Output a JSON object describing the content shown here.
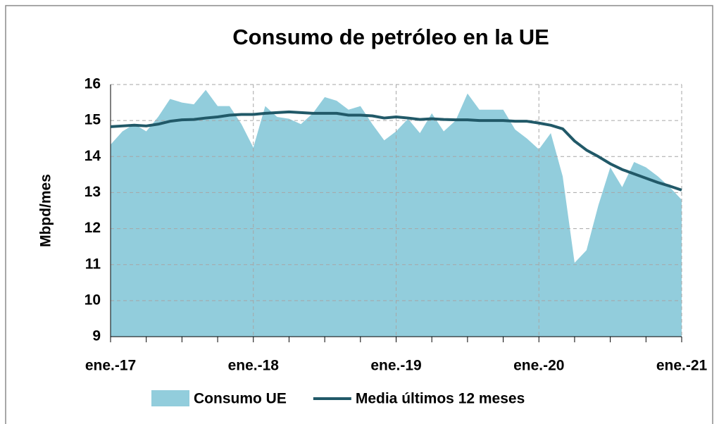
{
  "chart_data": {
    "type": "area_line",
    "title": "Consumo de petróleo en la UE",
    "y_label": "Mbpd/mes",
    "categories": [
      "ene.-17",
      null,
      null,
      null,
      null,
      null,
      null,
      null,
      null,
      null,
      null,
      null,
      "ene.-18",
      null,
      null,
      null,
      null,
      null,
      null,
      null,
      null,
      null,
      null,
      null,
      "ene.-19",
      null,
      null,
      null,
      null,
      null,
      null,
      null,
      null,
      null,
      null,
      null,
      "ene.-20",
      null,
      null,
      null,
      null,
      null,
      null,
      null,
      null,
      null,
      null,
      null,
      "ene.-21"
    ],
    "series": [
      {
        "name": "Consumo UE",
        "kind": "area",
        "color": "#92cddc",
        "values": [
          14.33,
          14.7,
          14.9,
          14.7,
          15.1,
          15.6,
          15.5,
          15.45,
          15.85,
          15.4,
          15.4,
          14.9,
          14.25,
          15.4,
          15.1,
          15.05,
          14.9,
          15.2,
          15.65,
          15.55,
          15.3,
          15.4,
          14.9,
          14.45,
          14.7,
          15.05,
          14.65,
          15.2,
          14.7,
          15.0,
          15.75,
          15.3,
          15.3,
          15.3,
          14.75,
          14.5,
          14.2,
          14.65,
          13.45,
          11.05,
          11.4,
          12.65,
          13.7,
          13.15,
          13.85,
          13.7,
          13.45,
          13.15,
          12.8
        ]
      },
      {
        "name": "Media últimos 12 meses",
        "kind": "line",
        "color": "#215968",
        "values": [
          14.83,
          14.85,
          14.87,
          14.85,
          14.9,
          14.98,
          15.02,
          15.03,
          15.07,
          15.1,
          15.15,
          15.17,
          15.17,
          15.2,
          15.22,
          15.24,
          15.22,
          15.2,
          15.2,
          15.2,
          15.15,
          15.15,
          15.13,
          15.07,
          15.1,
          15.07,
          15.03,
          15.05,
          15.03,
          15.02,
          15.02,
          15.0,
          15.0,
          15.0,
          14.98,
          14.98,
          14.93,
          14.87,
          14.77,
          14.43,
          14.18,
          14.0,
          13.8,
          13.64,
          13.52,
          13.4,
          13.28,
          13.18,
          13.07
        ]
      }
    ],
    "ylim": [
      9,
      16
    ],
    "yticks": [
      9,
      10,
      11,
      12,
      13,
      14,
      15,
      16
    ],
    "grid": true
  }
}
